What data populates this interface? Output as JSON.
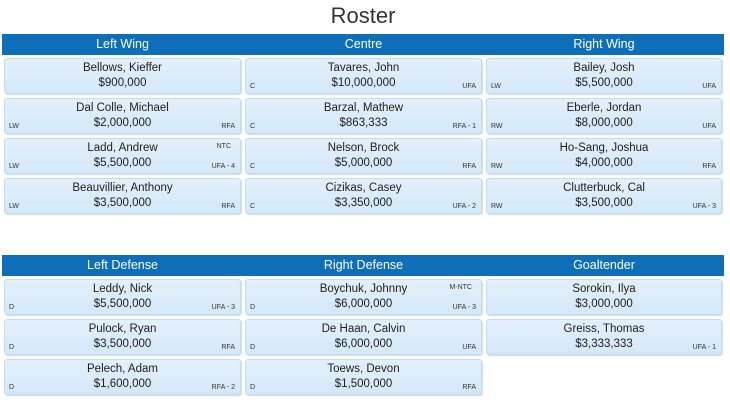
{
  "title": "Roster",
  "forwards": {
    "headers": [
      "Left Wing",
      "Centre",
      "Right Wing"
    ],
    "left_wing": [
      {
        "name": "Bellows, Kieffer",
        "salary": "$900,000",
        "pos": "",
        "status": "",
        "clause": ""
      },
      {
        "name": "Dal Colle, Michael",
        "salary": "$2,000,000",
        "pos": "LW",
        "status": "RFA",
        "clause": ""
      },
      {
        "name": "Ladd, Andrew",
        "salary": "$5,500,000",
        "pos": "LW",
        "status": "UFA - 4",
        "clause": "NTC"
      },
      {
        "name": "Beauvillier, Anthony",
        "salary": "$3,500,000",
        "pos": "LW",
        "status": "RFA",
        "clause": ""
      }
    ],
    "centre": [
      {
        "name": "Tavares, John",
        "salary": "$10,000,000",
        "pos": "C",
        "status": "UFA",
        "clause": ""
      },
      {
        "name": "Barzal, Mathew",
        "salary": "$863,333",
        "pos": "C",
        "status": "RFA - 1",
        "clause": ""
      },
      {
        "name": "Nelson, Brock",
        "salary": "$5,000,000",
        "pos": "C",
        "status": "RFA",
        "clause": ""
      },
      {
        "name": "Cizikas, Casey",
        "salary": "$3,350,000",
        "pos": "C",
        "status": "UFA - 2",
        "clause": ""
      }
    ],
    "right_wing": [
      {
        "name": "Bailey, Josh",
        "salary": "$5,500,000",
        "pos": "LW",
        "status": "UFA",
        "clause": ""
      },
      {
        "name": "Eberle, Jordan",
        "salary": "$8,000,000",
        "pos": "RW",
        "status": "UFA",
        "clause": ""
      },
      {
        "name": "Ho-Sang, Joshua",
        "salary": "$4,000,000",
        "pos": "RW",
        "status": "RFA",
        "clause": ""
      },
      {
        "name": "Clutterbuck, Cal",
        "salary": "$3,500,000",
        "pos": "RW",
        "status": "UFA - 3",
        "clause": ""
      }
    ]
  },
  "defense": {
    "headers": [
      "Left Defense",
      "Right Defense",
      "Goaltender"
    ],
    "left_defense": [
      {
        "name": "Leddy, Nick",
        "salary": "$5,500,000",
        "pos": "D",
        "status": "UFA - 3",
        "clause": ""
      },
      {
        "name": "Pulock, Ryan",
        "salary": "$3,500,000",
        "pos": "D",
        "status": "RFA",
        "clause": ""
      },
      {
        "name": "Pelech, Adam",
        "salary": "$1,600,000",
        "pos": "D",
        "status": "RFA - 2",
        "clause": ""
      }
    ],
    "right_defense": [
      {
        "name": "Boychuk, Johnny",
        "salary": "$6,000,000",
        "pos": "D",
        "status": "UFA - 3",
        "clause": "M-NTC"
      },
      {
        "name": "De Haan, Calvin",
        "salary": "$6,000,000",
        "pos": "D",
        "status": "UFA",
        "clause": ""
      },
      {
        "name": "Toews, Devon",
        "salary": "$1,500,000",
        "pos": "D",
        "status": "RFA",
        "clause": ""
      }
    ],
    "goaltender": [
      {
        "name": "Sorokin, Ilya",
        "salary": "$3,000,000",
        "pos": "",
        "status": "",
        "clause": ""
      },
      {
        "name": "Greiss, Thomas",
        "salary": "$3,333,333",
        "pos": "",
        "status": "UFA - 1",
        "clause": ""
      }
    ]
  }
}
